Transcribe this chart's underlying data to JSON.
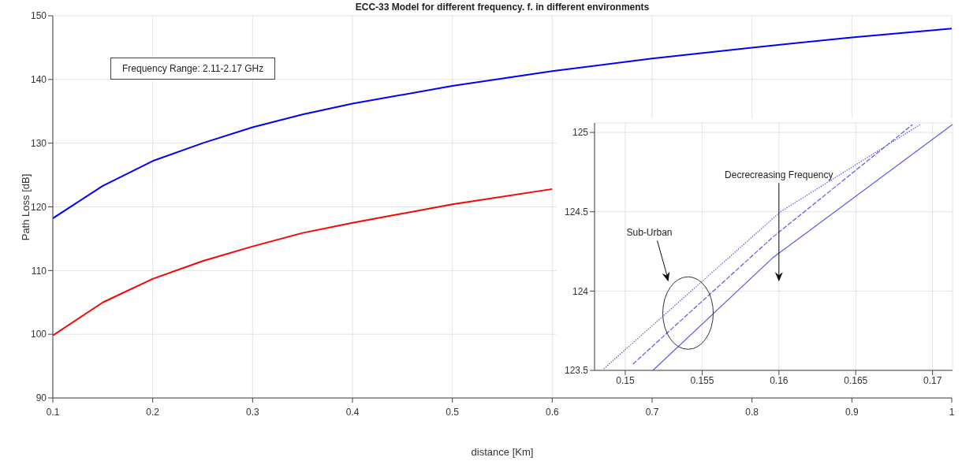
{
  "chart_data": [
    {
      "type": "line",
      "title": "ECC-33 Model for different frequency. f. in different environments",
      "xlabel": "distance [Km]",
      "ylabel": "Path Loss [dB]",
      "xlim": [
        0.1,
        1
      ],
      "xticks": [
        0.1,
        0.2,
        0.3,
        0.4,
        0.5,
        0.6,
        0.7,
        0.8,
        0.9,
        1
      ],
      "ylim": [
        90,
        150
      ],
      "yticks": [
        90,
        100,
        110,
        120,
        130,
        140,
        150
      ],
      "grid": true,
      "annotations": [
        "Frequency Range: 2.11-2.17 GHz"
      ],
      "series": [
        {
          "color": "#0000ff",
          "x": [
            0.1,
            0.15,
            0.2,
            0.25,
            0.3,
            0.35,
            0.4,
            0.5,
            0.6,
            0.7,
            0.8,
            0.9,
            1
          ],
          "values": [
            118.2,
            123.3,
            127.2,
            130,
            132.5,
            134.5,
            136.2,
            139,
            141.3,
            143.3,
            145,
            146.6,
            148
          ]
        },
        {
          "color": "#ff0000",
          "x": [
            0.1,
            0.15,
            0.2,
            0.25,
            0.3,
            0.35,
            0.4,
            0.5,
            0.6
          ],
          "values": [
            99.8,
            105,
            108.7,
            111.5,
            113.8,
            115.9,
            117.5,
            120.4,
            122.8
          ]
        }
      ]
    },
    {
      "type": "line",
      "xlim": [
        0.148,
        0.1713
      ],
      "xticks": [
        0.15,
        0.155,
        0.16,
        0.165,
        0.17
      ],
      "ylim": [
        123.5,
        125.06
      ],
      "yticks": [
        123.5,
        124,
        124.5,
        125
      ],
      "grid": true,
      "annotations": [
        "Sub-Urban",
        "Decrecreasing Frequency"
      ],
      "series": [
        {
          "color": "#5a5ae6",
          "line_style": "dotted",
          "x": [
            0.1486,
            0.1601,
            0.1692
          ],
          "values": [
            123.51,
            124.5,
            125.05
          ]
        },
        {
          "color": "#5a5ae6",
          "line_style": "dashed",
          "x": [
            0.1505,
            0.1596,
            0.1687
          ],
          "values": [
            123.54,
            124.34,
            125.05
          ]
        },
        {
          "color": "#5a5ae6",
          "line_style": "solid",
          "x": [
            0.1518,
            0.1596,
            0.1713
          ],
          "values": [
            123.5,
            124.21,
            125.05
          ]
        }
      ]
    }
  ]
}
